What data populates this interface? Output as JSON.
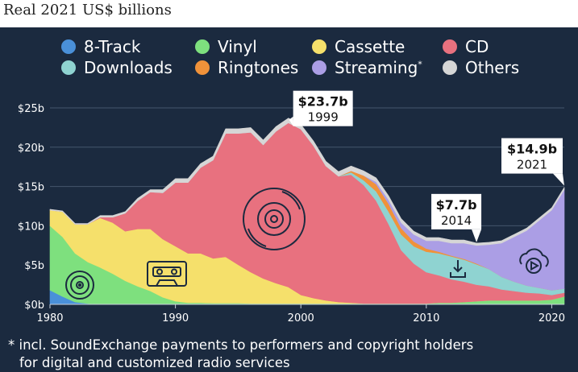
{
  "subtitle": "Real 2021 US$ billions",
  "legend": [
    {
      "key": "eight_track",
      "label": "8-Track",
      "color": "#4a90d9"
    },
    {
      "key": "vinyl",
      "label": "Vinyl",
      "color": "#7ee07e"
    },
    {
      "key": "cassette",
      "label": "Cassette",
      "color": "#f5e06b"
    },
    {
      "key": "cd",
      "label": "CD",
      "color": "#e8717f"
    },
    {
      "key": "downloads",
      "label": "Downloads",
      "color": "#8fd3d1"
    },
    {
      "key": "ringtones",
      "label": "Ringtones",
      "color": "#f0923a"
    },
    {
      "key": "streaming",
      "label": "Streaming",
      "color": "#ab9ee5",
      "marker": "*"
    },
    {
      "key": "others",
      "label": "Others",
      "color": "#d6d6d6"
    }
  ],
  "footnote": {
    "line1": "* incl. SoundExchange payments to performers and copyright holders",
    "line2": "for digital and customized radio services"
  },
  "chart_data": {
    "type": "area",
    "stacked": true,
    "title": "",
    "xlabel": "",
    "ylabel": "Real 2021 US$ billions",
    "x": [
      1980,
      1981,
      1982,
      1983,
      1984,
      1985,
      1986,
      1987,
      1988,
      1989,
      1990,
      1991,
      1992,
      1993,
      1994,
      1995,
      1996,
      1997,
      1998,
      1999,
      2000,
      2001,
      2002,
      2003,
      2004,
      2005,
      2006,
      2007,
      2008,
      2009,
      2010,
      2011,
      2012,
      2013,
      2014,
      2015,
      2016,
      2017,
      2018,
      2019,
      2020,
      2021
    ],
    "xlim": [
      1980,
      2021
    ],
    "ylim": [
      0,
      25
    ],
    "x_ticks": [
      1980,
      1990,
      2000,
      2010,
      2020
    ],
    "y_ticks": [
      0,
      5,
      10,
      15,
      20,
      25
    ],
    "y_tick_labels": [
      "$0b",
      "$5b",
      "$10b",
      "$15b",
      "$20b",
      "$25b"
    ],
    "series": [
      {
        "key": "eight_track",
        "name": "8-Track",
        "values": [
          1.8,
          1.0,
          0.3,
          0.1,
          0,
          0,
          0,
          0,
          0,
          0,
          0,
          0,
          0,
          0,
          0,
          0,
          0,
          0,
          0,
          0,
          0,
          0,
          0,
          0,
          0,
          0,
          0,
          0,
          0,
          0,
          0,
          0,
          0,
          0,
          0,
          0,
          0,
          0,
          0,
          0,
          0,
          0
        ]
      },
      {
        "key": "vinyl",
        "name": "Vinyl",
        "values": [
          8.2,
          7.6,
          6.2,
          5.3,
          4.7,
          3.9,
          3.0,
          2.3,
          1.7,
          0.9,
          0.4,
          0.2,
          0.2,
          0.15,
          0.15,
          0.15,
          0.1,
          0.1,
          0.1,
          0.1,
          0.1,
          0.1,
          0.1,
          0.1,
          0.1,
          0.1,
          0.1,
          0.1,
          0.1,
          0.1,
          0.1,
          0.2,
          0.2,
          0.3,
          0.4,
          0.5,
          0.5,
          0.5,
          0.5,
          0.5,
          0.6,
          1.0
        ]
      },
      {
        "key": "cassette",
        "name": "Cassette",
        "values": [
          2.0,
          3.2,
          3.7,
          4.8,
          6.3,
          6.5,
          6.3,
          7.3,
          7.9,
          7.4,
          7.0,
          6.3,
          6.3,
          5.7,
          5.9,
          4.9,
          4.0,
          3.2,
          2.6,
          2.1,
          1.1,
          0.7,
          0.4,
          0.2,
          0.1,
          0,
          0,
          0,
          0,
          0,
          0,
          0,
          0,
          0,
          0,
          0,
          0,
          0,
          0,
          0,
          0,
          0
        ]
      },
      {
        "key": "cd",
        "name": "CD",
        "values": [
          0,
          0,
          0,
          0,
          0.1,
          0.7,
          2.3,
          3.6,
          4.7,
          5.9,
          8.1,
          9.0,
          10.9,
          12.5,
          15.7,
          16.7,
          17.8,
          17.0,
          19.3,
          20.9,
          21.1,
          19.4,
          17.1,
          16.0,
          16.3,
          15.1,
          13.1,
          10.1,
          6.8,
          5.1,
          4.0,
          3.5,
          3.0,
          2.6,
          2.1,
          1.8,
          1.4,
          1.2,
          1.0,
          0.9,
          0.6,
          0.5
        ]
      },
      {
        "key": "downloads",
        "name": "Downloads",
        "values": [
          0,
          0,
          0,
          0,
          0,
          0,
          0,
          0,
          0,
          0,
          0,
          0,
          0,
          0,
          0,
          0,
          0,
          0,
          0,
          0,
          0,
          0,
          0,
          0,
          0.3,
          0.6,
          1.2,
          1.6,
          2.0,
          2.2,
          2.6,
          2.8,
          2.9,
          2.8,
          2.6,
          2.2,
          1.6,
          1.2,
          0.9,
          0.7,
          0.6,
          0.5
        ]
      },
      {
        "key": "ringtones",
        "name": "Ringtones",
        "values": [
          0,
          0,
          0,
          0,
          0,
          0,
          0,
          0,
          0,
          0,
          0,
          0,
          0,
          0,
          0,
          0,
          0,
          0,
          0,
          0,
          0,
          0,
          0,
          0,
          0.2,
          0.6,
          0.9,
          1.0,
          0.8,
          0.6,
          0.4,
          0.2,
          0.1,
          0.1,
          0.1,
          0,
          0,
          0,
          0,
          0,
          0,
          0
        ]
      },
      {
        "key": "streaming",
        "name": "Streaming",
        "values": [
          0,
          0,
          0,
          0,
          0,
          0,
          0,
          0,
          0,
          0,
          0,
          0,
          0,
          0,
          0,
          0,
          0,
          0,
          0,
          0,
          0,
          0,
          0,
          0,
          0,
          0,
          0.3,
          0.5,
          0.7,
          0.9,
          1.0,
          1.4,
          1.6,
          2.0,
          2.3,
          3.1,
          4.3,
          5.7,
          7.0,
          8.6,
          10.2,
          12.6
        ]
      },
      {
        "key": "others",
        "name": "Others",
        "values": [
          0.1,
          0.1,
          0.1,
          0.1,
          0.2,
          0.2,
          0.2,
          0.3,
          0.3,
          0.4,
          0.5,
          0.5,
          0.5,
          0.5,
          0.6,
          0.6,
          0.6,
          0.6,
          0.6,
          0.6,
          0.6,
          0.6,
          0.6,
          0.6,
          0.6,
          0.6,
          0.5,
          0.5,
          0.5,
          0.4,
          0.4,
          0.4,
          0.4,
          0.4,
          0.3,
          0.3,
          0.3,
          0.3,
          0.3,
          0.3,
          0.3,
          0.3
        ]
      }
    ],
    "annotations": [
      {
        "key": "peak_1999",
        "value": "$23.7b",
        "year": "1999",
        "x": 1999,
        "y": 23.7
      },
      {
        "key": "low_2014",
        "value": "$7.7b",
        "year": "2014",
        "x": 2014,
        "y": 7.7
      },
      {
        "key": "last_2021",
        "value": "$14.9b",
        "year": "2021",
        "x": 2021,
        "y": 14.9
      }
    ]
  }
}
